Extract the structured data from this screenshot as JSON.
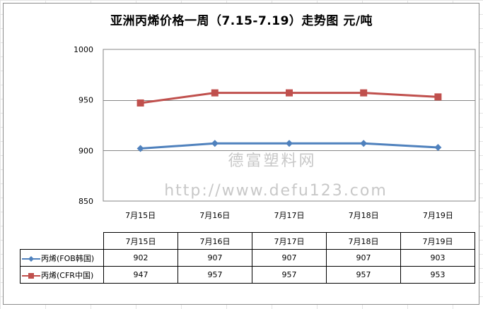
{
  "chart_data": {
    "type": "line",
    "title": "亚洲丙烯价格一周（7.15-7.19）走势图 元/吨",
    "categories": [
      "7月15日",
      "7月16日",
      "7月17日",
      "7月18日",
      "7月19日"
    ],
    "series": [
      {
        "name": "丙烯(FOB韩国)",
        "values": [
          902,
          907,
          907,
          907,
          903
        ],
        "color": "#4f81bd",
        "marker": "diamond"
      },
      {
        "name": "丙烯(CFR中国)",
        "values": [
          947,
          957,
          957,
          957,
          953
        ],
        "color": "#c0504d",
        "marker": "square"
      }
    ],
    "ylim": [
      850,
      1000
    ],
    "yticks": [
      850,
      900,
      950,
      1000
    ],
    "grid": true,
    "legend": "data-table",
    "xlabel": "",
    "ylabel": ""
  },
  "watermark": {
    "line1": "德富塑料网",
    "line2": "http://www.defu123.com"
  }
}
